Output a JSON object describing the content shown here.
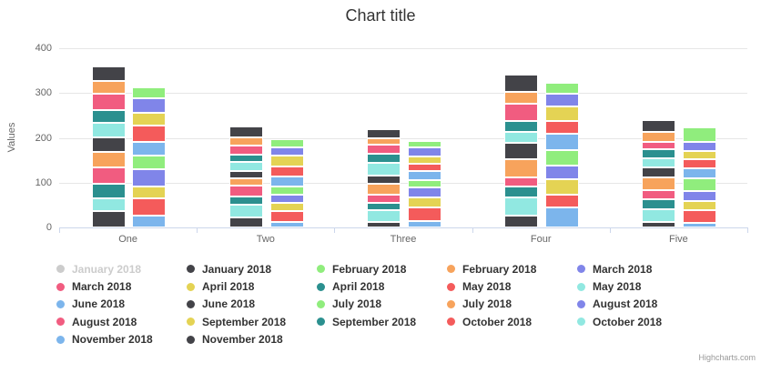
{
  "title": "Chart title",
  "credit": "Highcharts.com",
  "y_axis": {
    "title": "Values",
    "tick_labels": [
      "0",
      "100",
      "200",
      "300",
      "400"
    ]
  },
  "x_axis": {
    "categories": [
      "One",
      "Two",
      "Three",
      "Four",
      "Five"
    ]
  },
  "colors": {
    "title_text": "#333333",
    "axis_label_text": "#666666",
    "grid_line": "#e6e6e6",
    "axis_line": "#ccd6eb",
    "legend_text": "#333333",
    "legend_disabled": "#cccccc",
    "credit_text": "#999999",
    "segment_border": "#ffffff"
  },
  "chart_data": {
    "type": "bar",
    "variant": "stacked-grouped-column",
    "title": "Chart title",
    "ylabel": "Values",
    "xlabel": "",
    "ylim": [
      0,
      400
    ],
    "grid": true,
    "legend_position": "bottom",
    "categories": [
      "One",
      "Two",
      "Three",
      "Four",
      "Five"
    ],
    "stacks_left_to_right": [
      "B",
      "A"
    ],
    "series": [
      {
        "name": "January 2018",
        "stack": "A",
        "color": "#7cb5ec",
        "hidden": true,
        "values": []
      },
      {
        "name": "January 2018",
        "stack": "B",
        "color": "#434348",
        "hidden": false,
        "values": [
          31,
          25,
          20,
          39,
          27
        ]
      },
      {
        "name": "February 2018",
        "stack": "A",
        "color": "#90ed7d",
        "hidden": false,
        "values": [
          24,
          18,
          16,
          24,
          31
        ]
      },
      {
        "name": "February 2018",
        "stack": "B",
        "color": "#f7a35c",
        "hidden": false,
        "values": [
          29,
          19,
          15,
          26,
          21
        ]
      },
      {
        "name": "March 2018",
        "stack": "A",
        "color": "#8085e9",
        "hidden": false,
        "values": [
          34,
          18,
          20,
          29,
          22
        ]
      },
      {
        "name": "March 2018",
        "stack": "B",
        "color": "#f15c80",
        "hidden": false,
        "values": [
          36,
          20,
          19,
          39,
          18
        ]
      },
      {
        "name": "April 2018",
        "stack": "A",
        "color": "#e4d354",
        "hidden": false,
        "values": [
          27,
          25,
          15,
          32,
          17
        ]
      },
      {
        "name": "April 2018",
        "stack": "B",
        "color": "#2b908f",
        "hidden": false,
        "values": [
          30,
          16,
          20,
          25,
          20
        ]
      },
      {
        "name": "May 2018",
        "stack": "A",
        "color": "#f45b5b",
        "hidden": false,
        "values": [
          37,
          23,
          17,
          29,
          20
        ]
      },
      {
        "name": "May 2018",
        "stack": "B",
        "color": "#91e8e1",
        "hidden": false,
        "values": [
          32,
          21,
          29,
          25,
          20
        ]
      },
      {
        "name": "June 2018",
        "stack": "A",
        "color": "#7cb5ec",
        "hidden": false,
        "values": [
          31,
          21,
          20,
          37,
          24
        ]
      },
      {
        "name": "June 2018",
        "stack": "B",
        "color": "#434348",
        "hidden": false,
        "values": [
          33,
          16,
          18,
          36,
          23
        ]
      },
      {
        "name": "July 2018",
        "stack": "A",
        "color": "#90ed7d",
        "hidden": false,
        "values": [
          29,
          18,
          16,
          33,
          28
        ]
      },
      {
        "name": "July 2018",
        "stack": "B",
        "color": "#f7a35c",
        "hidden": false,
        "values": [
          33,
          16,
          25,
          40,
          27
        ]
      },
      {
        "name": "August 2018",
        "stack": "A",
        "color": "#8085e9",
        "hidden": false,
        "values": [
          39,
          19,
          22,
          32,
          22
        ]
      },
      {
        "name": "August 2018",
        "stack": "B",
        "color": "#f15c80",
        "hidden": false,
        "values": [
          38,
          24,
          19,
          20,
          21
        ]
      },
      {
        "name": "September 2018",
        "stack": "A",
        "color": "#e4d354",
        "hidden": false,
        "values": [
          27,
          19,
          23,
          34,
          20
        ]
      },
      {
        "name": "September 2018",
        "stack": "B",
        "color": "#2b908f",
        "hidden": false,
        "values": [
          31,
          19,
          16,
          25,
          22
        ]
      },
      {
        "name": "October 2018",
        "stack": "A",
        "color": "#f45b5b",
        "hidden": false,
        "values": [
          39,
          24,
          30,
          29,
          29
        ]
      },
      {
        "name": "October 2018",
        "stack": "B",
        "color": "#91e8e1",
        "hidden": false,
        "values": [
          29,
          28,
          26,
          41,
          28
        ]
      },
      {
        "name": "November 2018",
        "stack": "A",
        "color": "#7cb5ec",
        "hidden": false,
        "values": [
          26,
          12,
          15,
          44,
          10
        ]
      },
      {
        "name": "November 2018",
        "stack": "B",
        "color": "#434348",
        "hidden": false,
        "values": [
          37,
          22,
          12,
          26,
          13
        ]
      }
    ]
  }
}
